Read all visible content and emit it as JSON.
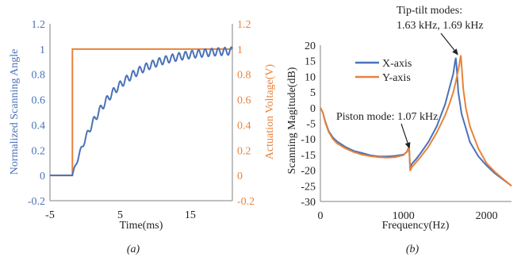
{
  "colors": {
    "angle": "#4a72b8",
    "voltage": "#e8823a",
    "x_axis": "#4a72b8",
    "y_axis": "#e8823a",
    "axis": "#808080",
    "text": "#222222",
    "grid": "#d9d9d9"
  },
  "chart_data": [
    {
      "type": "line",
      "panel_label": "(a)",
      "title": "",
      "xlabel": "Time(ms)",
      "ylabel": "Normalized Scanning Angle",
      "y2label": "Actuation Voltage(V)",
      "xlim": [
        -5,
        21
      ],
      "ylim": [
        -0.2,
        1.2
      ],
      "y2lim": [
        -0.2,
        1.2
      ],
      "xticks": [
        "-5",
        "5",
        "15"
      ],
      "xtick_values": [
        -5,
        5,
        15
      ],
      "yticks": [
        "-0.2",
        "0",
        "0.2",
        "0.4",
        "0.6",
        "0.8",
        "1",
        "1.2"
      ],
      "ytick_values": [
        -0.2,
        0,
        0.2,
        0.4,
        0.6,
        0.8,
        1,
        1.2
      ],
      "y2ticks": [
        "-0.2",
        "0",
        "0.2",
        "0.4",
        "0.6",
        "0.8",
        "1",
        "1.2"
      ],
      "y2tick_values": [
        -0.2,
        0,
        0.2,
        0.4,
        0.6,
        0.8,
        1,
        1.2
      ],
      "grid": false,
      "series": [
        {
          "axis": "left",
          "step_time_ms": -1.8,
          "settle_value": 1.0,
          "time_constant_ms": 5.4,
          "ripple_frequency_khz": 1.07,
          "ripple_amplitude": 0.03,
          "color": "#4a72b8"
        },
        {
          "axis": "right",
          "x": [
            -5,
            -1.8,
            -1.8,
            21
          ],
          "y": [
            0,
            0,
            1,
            1
          ],
          "color": "#e8823a"
        }
      ]
    },
    {
      "type": "line",
      "panel_label": "(b)",
      "title": "",
      "xlabel": "Frequency(Hz)",
      "ylabel": "Scanning Magitude(dB)",
      "xlim": [
        0,
        2300
      ],
      "ylim": [
        -30,
        20
      ],
      "xticks": [
        "0",
        "1000",
        "2000"
      ],
      "xtick_values": [
        0,
        1000,
        2000
      ],
      "yticks": [
        "-30",
        "-25",
        "-20",
        "-15",
        "-10",
        "-5",
        "0",
        "5",
        "10",
        "15",
        "20"
      ],
      "ytick_values": [
        -30,
        -25,
        -20,
        -15,
        -10,
        -5,
        0,
        5,
        10,
        15,
        20
      ],
      "grid": false,
      "legend": {
        "placement": "upper-left",
        "entries": [
          "X-axis",
          "Y-axis"
        ]
      },
      "series": [
        {
          "name": "X-axis",
          "color": "#4a72b8",
          "x": [
            0,
            30,
            60,
            100,
            150,
            200,
            300,
            400,
            500,
            600,
            700,
            800,
            900,
            1000,
            1040,
            1060,
            1070,
            1080,
            1100,
            1150,
            1200,
            1300,
            1400,
            1450,
            1500,
            1550,
            1600,
            1620,
            1630,
            1640,
            1660,
            1700,
            1750,
            1800,
            1900,
            2000,
            2100,
            2200,
            2300
          ],
          "y": [
            0,
            -1.5,
            -4.5,
            -7.5,
            -9.5,
            -10.8,
            -12.5,
            -13.8,
            -14.5,
            -15.2,
            -15.6,
            -15.6,
            -15.4,
            -15,
            -14.2,
            -13.2,
            -13.8,
            -19.2,
            -18,
            -16.5,
            -14.8,
            -11,
            -6,
            -2.5,
            1,
            6,
            11,
            14.5,
            16,
            13,
            5,
            -2,
            -6.5,
            -11,
            -15.5,
            -18.5,
            -21,
            -23,
            -25
          ]
        },
        {
          "name": "Y-axis",
          "color": "#e8823a",
          "x": [
            0,
            30,
            60,
            100,
            150,
            200,
            300,
            400,
            500,
            600,
            700,
            800,
            900,
            1000,
            1040,
            1060,
            1070,
            1080,
            1100,
            1150,
            1200,
            1300,
            1400,
            1500,
            1550,
            1600,
            1640,
            1670,
            1690,
            1700,
            1720,
            1750,
            1800,
            1900,
            2000,
            2100,
            2200,
            2300
          ],
          "y": [
            0,
            -1.5,
            -4.8,
            -7.8,
            -10,
            -11.4,
            -13,
            -14.2,
            -15,
            -15.5,
            -15.8,
            -16,
            -15.8,
            -15.2,
            -14,
            -12.8,
            -13.5,
            -20.2,
            -19,
            -17.5,
            -16,
            -12.5,
            -8,
            -2.5,
            1,
            5,
            9.5,
            13.5,
            16.8,
            13.5,
            6,
            0,
            -6,
            -13,
            -17.8,
            -20.5,
            -22.8,
            -25
          ]
        }
      ],
      "annotations": [
        {
          "text_lines": [
            "Tip-tilt modes:",
            "1.63 kHz, 1.69 kHz"
          ],
          "target_x": 1660,
          "target_y": 16.8
        },
        {
          "text_lines": [
            "Piston mode: 1.07 kHz"
          ],
          "target_x": 1075,
          "target_y": -13.2
        }
      ]
    }
  ]
}
